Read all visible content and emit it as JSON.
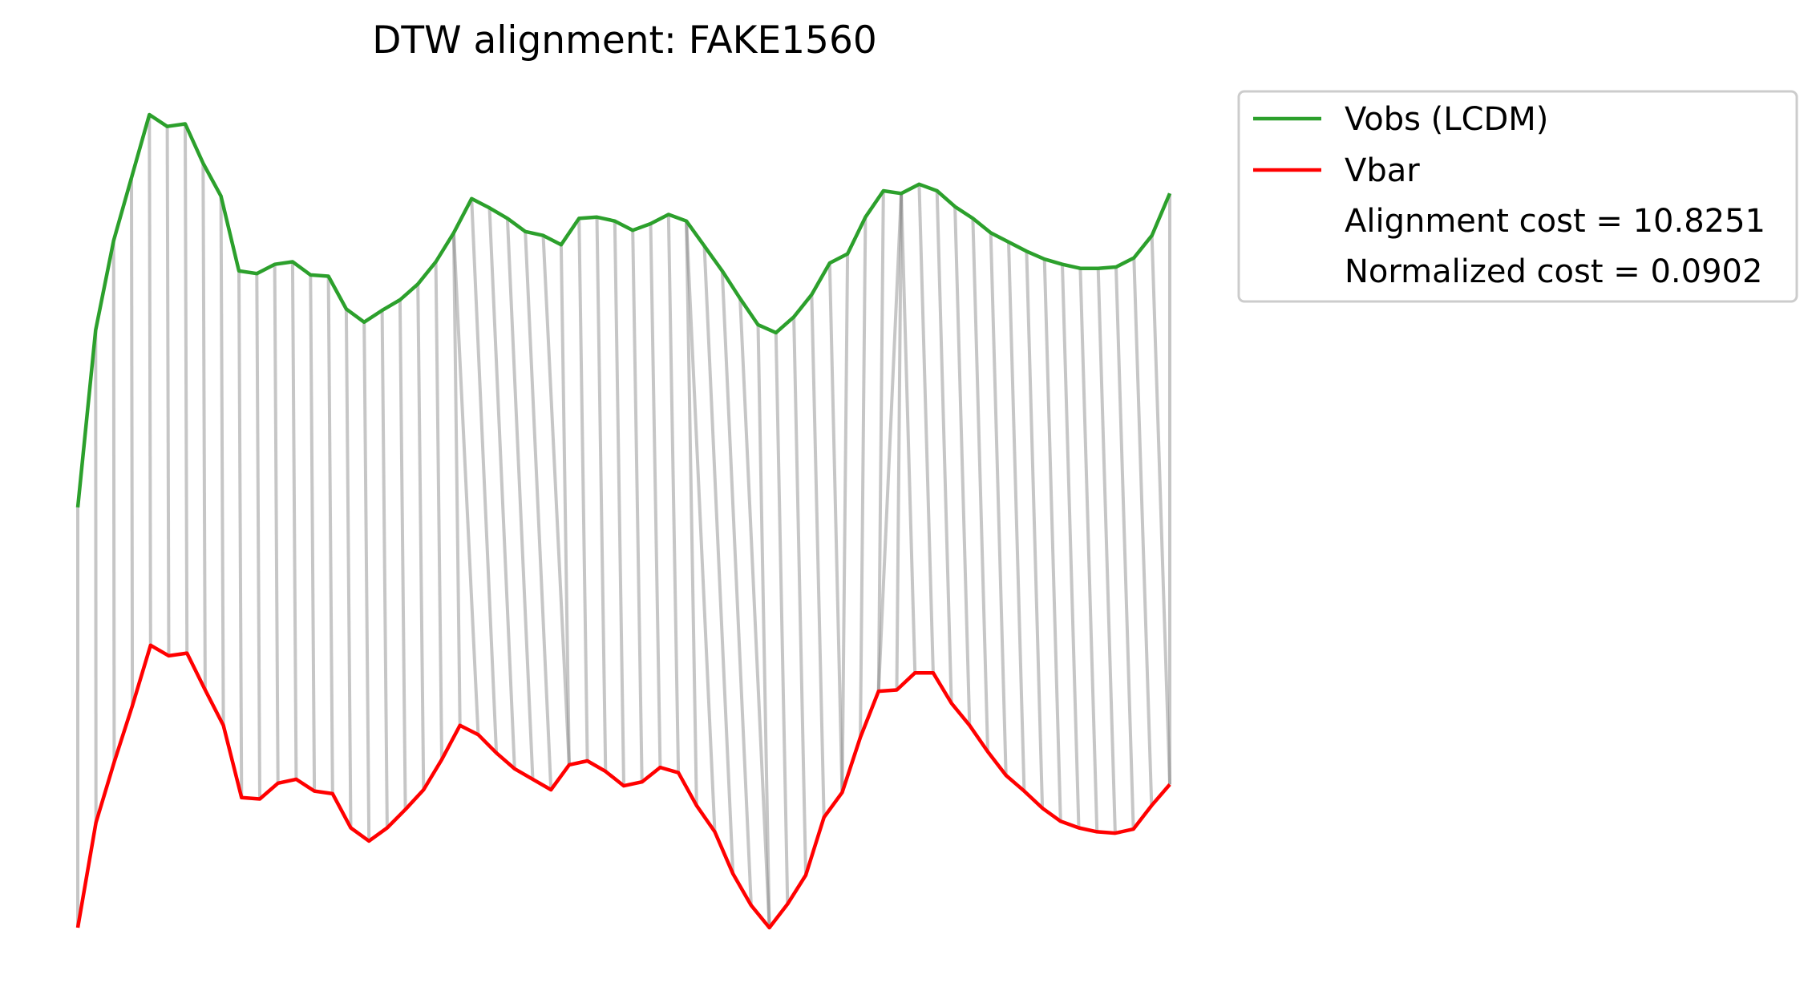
{
  "chart_data": {
    "type": "line",
    "title": "DTW alignment: FAKE1560",
    "xlabel": "",
    "ylabel": "",
    "axes_visible": false,
    "grid": false,
    "legend_position": "outside-top-right",
    "series": [
      {
        "name": "Vobs (LCDM)",
        "color": "#2ca02c",
        "values": [
          -0.8,
          0.55,
          1.23,
          1.71,
          2.19,
          2.1,
          2.12,
          1.82,
          1.57,
          1.0,
          0.98,
          1.05,
          1.07,
          0.97,
          0.96,
          0.71,
          0.61,
          0.7,
          0.78,
          0.9,
          1.07,
          1.29,
          1.55,
          1.48,
          1.4,
          1.3,
          1.27,
          1.2,
          1.4,
          1.41,
          1.38,
          1.31,
          1.36,
          1.43,
          1.38,
          1.19,
          1.0,
          0.79,
          0.59,
          0.53,
          0.65,
          0.82,
          1.06,
          1.13,
          1.41,
          1.61,
          1.59,
          1.66,
          1.61,
          1.49,
          1.4,
          1.29,
          1.22,
          1.15,
          1.09,
          1.05,
          1.02,
          1.02,
          1.03,
          1.1,
          1.27,
          1.59
        ]
      },
      {
        "name": "Vbar",
        "color": "#ff0000",
        "values": [
          -4.0,
          -3.2,
          -2.74,
          -2.31,
          -1.85,
          -1.93,
          -1.91,
          -2.19,
          -2.46,
          -3.01,
          -3.02,
          -2.9,
          -2.87,
          -2.96,
          -2.98,
          -3.24,
          -3.34,
          -3.24,
          -3.1,
          -2.95,
          -2.72,
          -2.46,
          -2.53,
          -2.67,
          -2.79,
          -2.87,
          -2.95,
          -2.76,
          -2.73,
          -2.81,
          -2.92,
          -2.89,
          -2.78,
          -2.82,
          -3.07,
          -3.27,
          -3.59,
          -3.83,
          -4.0,
          -3.82,
          -3.6,
          -3.16,
          -2.97,
          -2.55,
          -2.2,
          -2.19,
          -2.06,
          -2.06,
          -2.29,
          -2.46,
          -2.66,
          -2.84,
          -2.96,
          -3.09,
          -3.19,
          -3.24,
          -3.27,
          -3.28,
          -3.25,
          -3.07,
          -2.91
        ]
      }
    ],
    "alignment_pairs": [
      [
        0,
        0
      ],
      [
        1,
        1
      ],
      [
        2,
        2
      ],
      [
        3,
        3
      ],
      [
        4,
        4
      ],
      [
        5,
        5
      ],
      [
        6,
        6
      ],
      [
        7,
        7
      ],
      [
        8,
        8
      ],
      [
        9,
        9
      ],
      [
        10,
        10
      ],
      [
        11,
        11
      ],
      [
        12,
        12
      ],
      [
        13,
        13
      ],
      [
        14,
        14
      ],
      [
        15,
        15
      ],
      [
        16,
        16
      ],
      [
        17,
        17
      ],
      [
        18,
        18
      ],
      [
        19,
        19
      ],
      [
        20,
        20
      ],
      [
        21,
        21
      ],
      [
        21,
        22
      ],
      [
        22,
        23
      ],
      [
        23,
        24
      ],
      [
        24,
        25
      ],
      [
        25,
        26
      ],
      [
        26,
        27
      ],
      [
        27,
        27
      ],
      [
        28,
        28
      ],
      [
        29,
        29
      ],
      [
        30,
        30
      ],
      [
        31,
        31
      ],
      [
        32,
        32
      ],
      [
        33,
        33
      ],
      [
        34,
        34
      ],
      [
        34,
        35
      ],
      [
        35,
        36
      ],
      [
        36,
        37
      ],
      [
        37,
        38
      ],
      [
        38,
        38
      ],
      [
        39,
        39
      ],
      [
        40,
        40
      ],
      [
        41,
        41
      ],
      [
        42,
        42
      ],
      [
        43,
        42
      ],
      [
        44,
        43
      ],
      [
        45,
        44
      ],
      [
        46,
        44
      ],
      [
        46,
        45
      ],
      [
        46,
        46
      ],
      [
        47,
        47
      ],
      [
        48,
        48
      ],
      [
        49,
        49
      ],
      [
        50,
        50
      ],
      [
        51,
        51
      ],
      [
        52,
        52
      ],
      [
        53,
        53
      ],
      [
        54,
        54
      ],
      [
        55,
        55
      ],
      [
        56,
        56
      ],
      [
        57,
        57
      ],
      [
        58,
        58
      ],
      [
        59,
        59
      ],
      [
        60,
        60
      ],
      [
        61,
        60
      ]
    ],
    "legend": {
      "entries": [
        "Vobs (LCDM)",
        "Vbar"
      ],
      "notes": [
        "Alignment cost = 10.8251",
        "Normalized cost = 0.0902"
      ]
    }
  }
}
